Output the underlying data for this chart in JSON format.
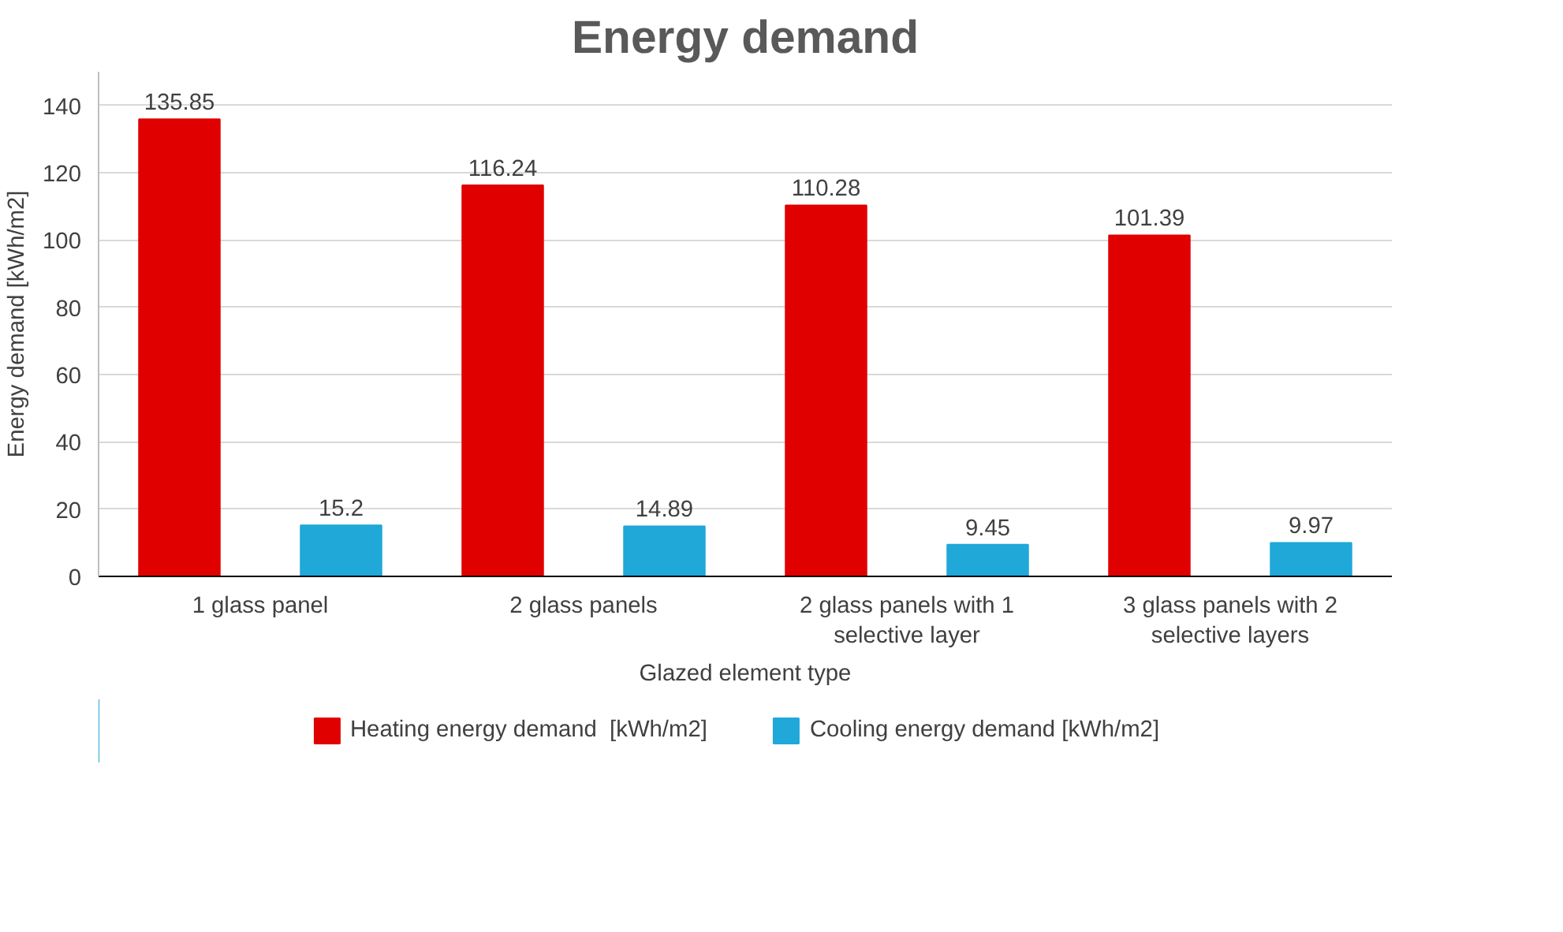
{
  "chart_data": {
    "type": "bar",
    "title": "Energy demand",
    "xlabel": "Glazed element type",
    "ylabel": "Energy demand [kWh/m2]",
    "categories": [
      "1 glass panel",
      "2 glass panels",
      "2 glass panels with 1 selective layer",
      "3 glass panels with 2 selective layers"
    ],
    "series": [
      {
        "name": "Heating energy demand  [kWh/m2]",
        "color": "#e00000",
        "values": [
          135.85,
          116.24,
          110.28,
          101.39
        ]
      },
      {
        "name": "Cooling energy demand [kWh/m2]",
        "color": "#1fa8d8",
        "values": [
          15.2,
          14.89,
          9.45,
          9.97
        ]
      }
    ],
    "ylim": [
      0,
      150
    ],
    "yticks": [
      0,
      20,
      40,
      60,
      80,
      100,
      120,
      140
    ],
    "grid": "y",
    "legend": "bottom",
    "data_labels": true
  }
}
